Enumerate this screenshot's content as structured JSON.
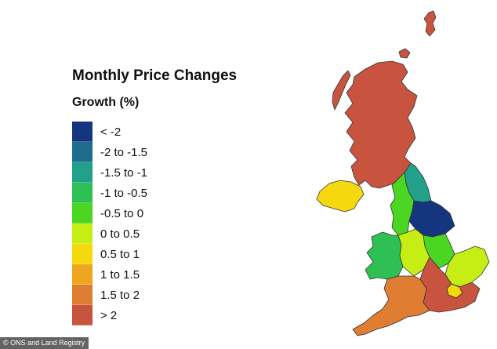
{
  "title": "Monthly Price Changes",
  "subtitle": "Growth (%)",
  "legend": [
    {
      "label": "< -2",
      "color": "#16357f"
    },
    {
      "label": "-2 to -1.5",
      "color": "#1e6d8f"
    },
    {
      "label": "-1.5 to -1",
      "color": "#22a08a"
    },
    {
      "label": "-1 to -0.5",
      "color": "#2ec052"
    },
    {
      "label": "-0.5 to 0",
      "color": "#4ad622"
    },
    {
      "label": "0 to 0.5",
      "color": "#c6ee14"
    },
    {
      "label": "0.5 to 1",
      "color": "#f6d80f"
    },
    {
      "label": "1 to 1.5",
      "color": "#eea61e"
    },
    {
      "label": "1.5 to 2",
      "color": "#df7d33"
    },
    {
      "label": "> 2",
      "color": "#c8533f"
    }
  ],
  "regions": [
    {
      "id": "scotland",
      "color": "#c8533f"
    },
    {
      "id": "northern-ireland",
      "color": "#f6d80f"
    },
    {
      "id": "north-east",
      "color": "#22a08a"
    },
    {
      "id": "north-west",
      "color": "#4ad622"
    },
    {
      "id": "yorkshire",
      "color": "#16357f"
    },
    {
      "id": "wales",
      "color": "#2ec052"
    },
    {
      "id": "west-midlands",
      "color": "#c6ee14"
    },
    {
      "id": "east-midlands",
      "color": "#4ad622"
    },
    {
      "id": "east-of-england",
      "color": "#c6ee14"
    },
    {
      "id": "london",
      "color": "#f6d80f"
    },
    {
      "id": "south-east",
      "color": "#c8533f"
    },
    {
      "id": "south-west",
      "color": "#df7d33"
    }
  ],
  "credit": "© ONS and Land Registry"
}
